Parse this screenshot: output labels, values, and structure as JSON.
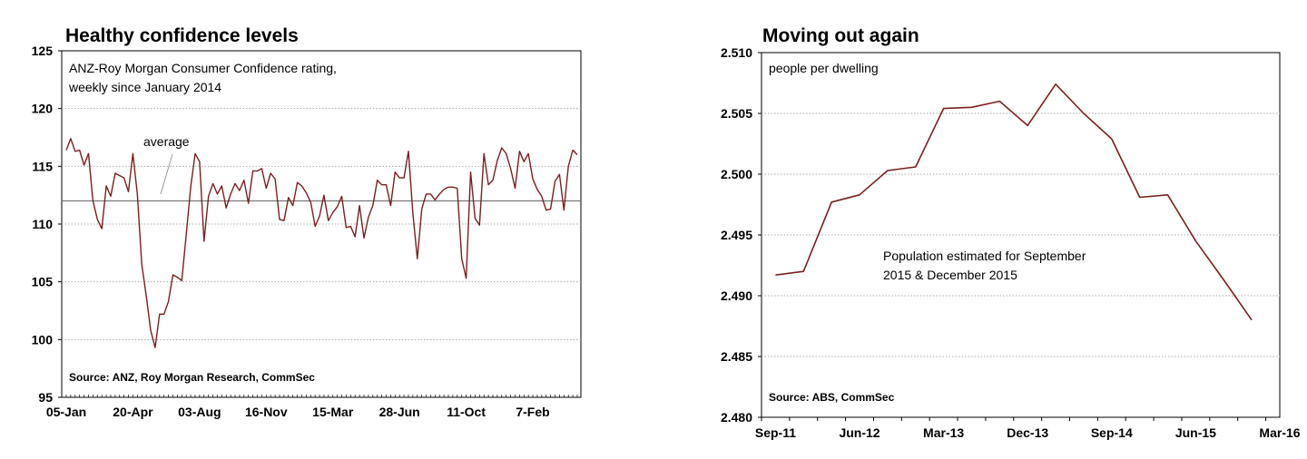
{
  "chart_data": [
    {
      "type": "line",
      "title": "Healthy confidence levels",
      "subtitle_lines": [
        "ANZ-Roy Morgan Consumer Confidence rating,",
        "weekly since January 2014"
      ],
      "annotation": "average",
      "source": "Source: ANZ, Roy Morgan Research, CommSec",
      "ylim": [
        95,
        125
      ],
      "y_ticks": [
        "95",
        "100",
        "105",
        "110",
        "115",
        "120",
        "125"
      ],
      "x_ticks": [
        "05-Jan",
        "20-Apr",
        "03-Aug",
        "16-Nov",
        "15-Mar",
        "28-Jun",
        "11-Oct",
        "7-Feb"
      ],
      "average": 112,
      "grid": true,
      "color": "#7b1f1f",
      "series": [
        {
          "values": [
            116.4,
            117.4,
            116.3,
            116.4,
            115.1,
            116.1,
            112,
            110.4,
            109.6,
            113.3,
            112.4,
            114.4,
            114.2,
            114,
            112.8,
            116.1,
            112.6,
            106.5,
            103.8,
            100.8,
            99.3,
            102.2,
            102.2,
            103.3,
            105.6,
            105.4,
            105.1,
            109.1,
            113.2,
            116.1,
            115.4,
            108.5,
            112.4,
            113.5,
            112.6,
            113.3,
            111.4,
            112.6,
            113.5,
            112.9,
            113.8,
            111.8,
            114.6,
            114.6,
            114.8,
            113.1,
            114.4,
            113.9,
            110.4,
            110.3,
            112.3,
            111.6,
            113.6,
            113.3,
            112.7,
            111.9,
            109.8,
            110.7,
            112.5,
            110.3,
            111,
            111.5,
            112.4,
            109.7,
            109.8,
            108.9,
            111.6,
            108.8,
            110.6,
            111.6,
            113.8,
            113.4,
            113.4,
            111.6,
            114.5,
            114,
            114,
            116.3,
            110.9,
            107,
            111.3,
            112.6,
            112.6,
            112.1,
            112.6,
            113,
            113.2,
            113.2,
            113.1,
            107,
            105.3,
            114.5,
            110.5,
            109.9,
            116.1,
            113.4,
            113.8,
            115.5,
            116.6,
            116.1,
            114.8,
            113.1,
            116.3,
            115.4,
            116.1,
            113.9,
            113,
            112.4,
            111.2,
            111.3,
            113.7,
            114.3,
            111.2,
            115,
            116.4,
            116
          ]
        }
      ]
    },
    {
      "type": "line",
      "title": "Moving out again",
      "subtitle_lines": [
        "people per dwelling"
      ],
      "annotation_lines": [
        "Population estimated for September",
        "2015 & December 2015"
      ],
      "source": "Source: ABS, CommSec",
      "ylim": [
        2.48,
        2.51
      ],
      "y_ticks": [
        "2.480",
        "2.485",
        "2.490",
        "2.495",
        "2.500",
        "2.505",
        "2.510"
      ],
      "x_ticks": [
        "Sep-11",
        "Jun-12",
        "Mar-13",
        "Dec-13",
        "Sep-14",
        "Jun-15",
        "Mar-16"
      ],
      "grid": true,
      "color": "#7b1f1f",
      "series": [
        {
          "x": [
            "Sep-11",
            "Dec-11",
            "Mar-12",
            "Jun-12",
            "Sep-12",
            "Dec-12",
            "Mar-13",
            "Jun-13",
            "Sep-13",
            "Dec-13",
            "Mar-14",
            "Jun-14",
            "Sep-14",
            "Dec-14",
            "Mar-15",
            "Jun-15",
            "Sep-15",
            "Dec-15"
          ],
          "values": [
            2.4917,
            2.492,
            2.4977,
            2.4983,
            2.5003,
            2.5006,
            2.5054,
            2.5055,
            2.506,
            2.504,
            2.5074,
            2.505,
            2.5029,
            2.4981,
            2.4983,
            2.4945,
            2.4913,
            2.488
          ]
        }
      ]
    }
  ]
}
